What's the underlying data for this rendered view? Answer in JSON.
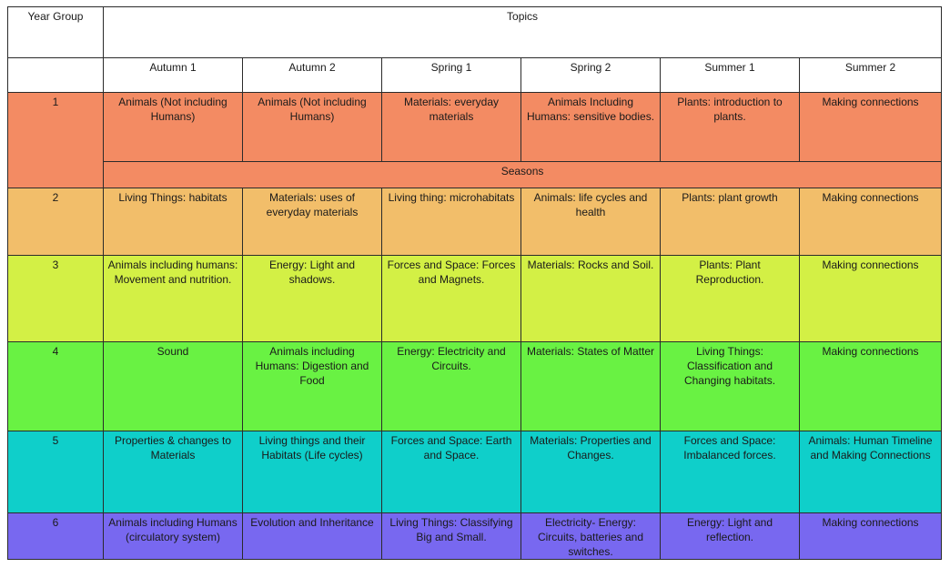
{
  "header": {
    "year_group_label": "Year Group",
    "topics_label": "Topics"
  },
  "terms": [
    "Autumn 1",
    "Autumn 2",
    "Spring 1",
    "Spring 2",
    "Summer 1",
    "Summer 2"
  ],
  "rows": [
    {
      "year": "1",
      "color": "#f38b63",
      "cells": [
        "Animals (Not including Humans)",
        "Animals (Not including Humans)",
        "Materials: everyday materials",
        "Animals Including Humans: sensitive bodies.",
        "Plants: introduction to plants.",
        "Making connections"
      ],
      "spanning_row": "Seasons"
    },
    {
      "year": "2",
      "color": "#f2be6a",
      "cells": [
        "Living Things: habitats",
        "Materials: uses of everyday materials",
        "Living thing: microhabitats",
        "Animals: life cycles and health",
        "Plants: plant growth",
        "Making connections"
      ]
    },
    {
      "year": "3",
      "color": "#d3f045",
      "cells": [
        "Animals including humans: Movement and nutrition.",
        "Energy: Light and shadows.",
        "Forces and Space: Forces and Magnets.",
        "Materials: Rocks and Soil.",
        "Plants: Plant Reproduction.",
        "Making connections"
      ]
    },
    {
      "year": "4",
      "color": "#69f243",
      "cells": [
        "Sound",
        "Animals including Humans: Digestion and Food",
        "Energy: Electricity and Circuits.",
        "Materials: States of Matter",
        "Living Things: Classification and Changing habitats.",
        "Making connections"
      ]
    },
    {
      "year": "5",
      "color": "#0fcfca",
      "cells": [
        "Properties & changes to Materials",
        "Living things and their Habitats (Life cycles)",
        "Forces and Space: Earth and Space.",
        "Materials: Properties and Changes.",
        "Forces and Space: Imbalanced forces.",
        "Animals: Human Timeline and Making Connections"
      ]
    },
    {
      "year": "6",
      "color": "#7868f0",
      "cells": [
        "Animals including Humans (circulatory system)",
        "Evolution and Inheritance",
        "Living Things: Classifying Big and Small.",
        "Electricity- Energy: Circuits, batteries and switches.",
        "Energy: Light and reflection.",
        "Making connections"
      ]
    }
  ]
}
